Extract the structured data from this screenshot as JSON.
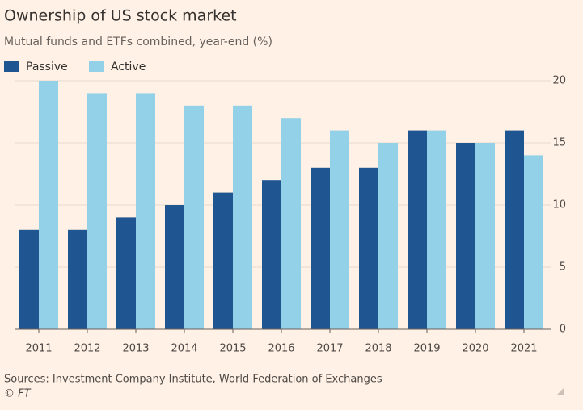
{
  "chart_data": {
    "type": "bar",
    "title": "Ownership of US stock market",
    "subtitle": "Mutual funds and ETFs combined, year-end (%)",
    "source": "Sources: Investment Company Institute, World Federation of Exchanges",
    "credit": "© FT",
    "categories": [
      "2011",
      "2012",
      "2013",
      "2014",
      "2015",
      "2016",
      "2017",
      "2018",
      "2019",
      "2020",
      "2021"
    ],
    "series": [
      {
        "name": "Passive",
        "color": "#1f5591",
        "values": [
          8,
          8,
          9,
          10,
          11,
          12,
          13,
          13,
          16,
          15,
          16
        ]
      },
      {
        "name": "Active",
        "color": "#93d1e8",
        "values": [
          20,
          19,
          19,
          18,
          18,
          17,
          16,
          15,
          16,
          15,
          14
        ]
      }
    ],
    "ylim": [
      0,
      20
    ],
    "yticks": [
      0,
      5,
      10,
      15,
      20
    ],
    "grid": true,
    "legend": "top"
  }
}
